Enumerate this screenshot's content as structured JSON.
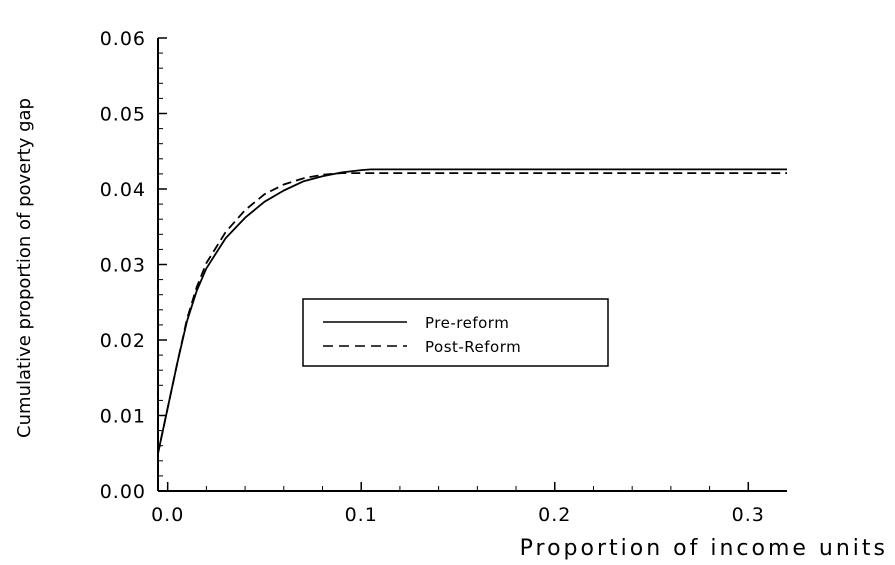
{
  "chart_data": {
    "type": "line",
    "title": "",
    "xlabel": "Proportion of income units",
    "ylabel": "Cumulative proportion of poverty gap",
    "xlim": [
      -0.005,
      0.32
    ],
    "ylim": [
      0,
      0.06
    ],
    "x_ticks": [
      0.0,
      0.1,
      0.2,
      0.3
    ],
    "x_tick_labels": [
      "0.0",
      "0.1",
      "0.2",
      "0.3"
    ],
    "y_ticks": [
      0.0,
      0.01,
      0.02,
      0.03,
      0.04,
      0.05,
      0.06
    ],
    "y_tick_labels": [
      "0.00",
      "0.01",
      "0.02",
      "0.03",
      "0.04",
      "0.05",
      "0.06"
    ],
    "grid": false,
    "legend": "center-left",
    "series": [
      {
        "name": "Pre-reform",
        "style": "solid",
        "color": "#000000",
        "x": [
          -0.005,
          0.0,
          0.005,
          0.01,
          0.015,
          0.02,
          0.03,
          0.04,
          0.05,
          0.06,
          0.07,
          0.08,
          0.09,
          0.1,
          0.105,
          0.15,
          0.2,
          0.25,
          0.3,
          0.32
        ],
        "y": [
          0.005,
          0.011,
          0.017,
          0.0225,
          0.0265,
          0.0295,
          0.0335,
          0.0362,
          0.0383,
          0.0398,
          0.041,
          0.0417,
          0.0422,
          0.0425,
          0.0426,
          0.0426,
          0.0426,
          0.0426,
          0.0426,
          0.0426
        ]
      },
      {
        "name": "Post-Reform",
        "style": "dashed",
        "color": "#000000",
        "x": [
          -0.005,
          0.0,
          0.005,
          0.01,
          0.015,
          0.02,
          0.03,
          0.04,
          0.05,
          0.06,
          0.07,
          0.08,
          0.09,
          0.095,
          0.1,
          0.15,
          0.2,
          0.25,
          0.3,
          0.32
        ],
        "y": [
          0.005,
          0.011,
          0.017,
          0.0228,
          0.027,
          0.0302,
          0.0343,
          0.0372,
          0.0393,
          0.0406,
          0.0414,
          0.0419,
          0.0421,
          0.0421,
          0.0421,
          0.0421,
          0.0421,
          0.0421,
          0.0421,
          0.0421
        ]
      }
    ]
  }
}
